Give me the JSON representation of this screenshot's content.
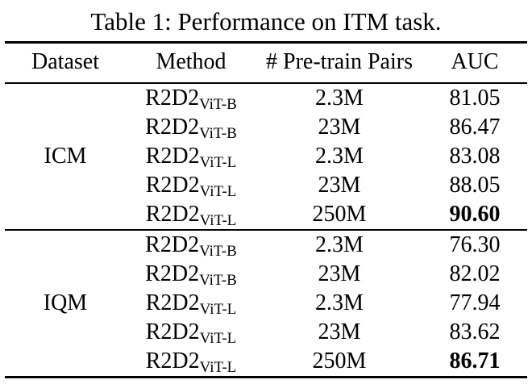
{
  "title": "Table 1: Performance on ITM task.",
  "table": {
    "columns": [
      "Dataset",
      "Method",
      "# Pre-train Pairs",
      "AUC"
    ],
    "groups": [
      {
        "dataset": "ICM",
        "rows": [
          {
            "method_base": "R2D2",
            "method_sub": "ViT-B",
            "pairs": "2.3M",
            "auc": "81.05"
          },
          {
            "method_base": "R2D2",
            "method_sub": "ViT-B",
            "pairs": "23M",
            "auc": "86.47"
          },
          {
            "method_base": "R2D2",
            "method_sub": "ViT-L",
            "pairs": "2.3M",
            "auc": "83.08"
          },
          {
            "method_base": "R2D2",
            "method_sub": "ViT-L",
            "pairs": "23M",
            "auc": "88.05"
          },
          {
            "method_base": "R2D2",
            "method_sub": "ViT-L",
            "pairs": "250M",
            "auc": "90.60"
          }
        ]
      },
      {
        "dataset": "IQM",
        "rows": [
          {
            "method_base": "R2D2",
            "method_sub": "ViT-B",
            "pairs": "2.3M",
            "auc": "76.30"
          },
          {
            "method_base": "R2D2",
            "method_sub": "ViT-B",
            "pairs": "23M",
            "auc": "82.02"
          },
          {
            "method_base": "R2D2",
            "method_sub": "ViT-L",
            "pairs": "2.3M",
            "auc": "77.94"
          },
          {
            "method_base": "R2D2",
            "method_sub": "ViT-L",
            "pairs": "23M",
            "auc": "83.62"
          },
          {
            "method_base": "R2D2",
            "method_sub": "ViT-L",
            "pairs": "250M",
            "auc": "86.71"
          }
        ]
      }
    ]
  }
}
